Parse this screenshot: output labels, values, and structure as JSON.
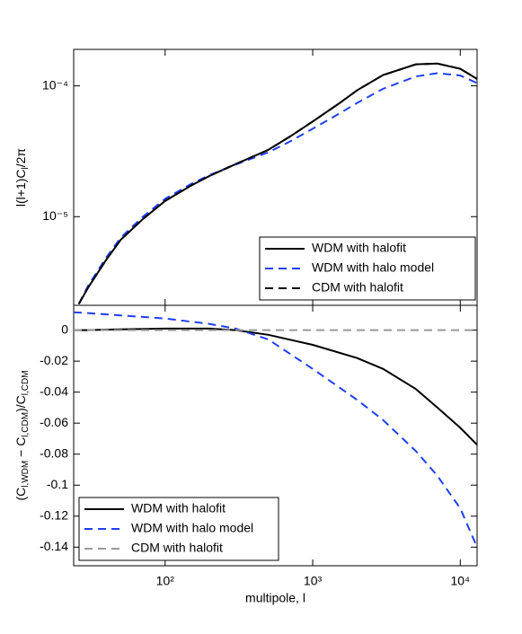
{
  "chart_data": [
    {
      "type": "line",
      "ylabel": [
        "l(l+1)C",
        "l",
        "/2π"
      ],
      "xscale": "log",
      "yscale": "log",
      "xlim": [
        24,
        13000
      ],
      "xticks": [
        100,
        1000,
        10000
      ],
      "ylim": [
        2.1e-06,
        0.00019
      ],
      "yticks": [
        {
          "value": 0.0001,
          "label": "10⁻⁴"
        },
        {
          "value": 1e-05,
          "label": "10⁻⁵"
        }
      ],
      "legend": "lower right",
      "x": [
        26,
        30,
        40,
        50,
        70,
        100,
        150,
        200,
        300,
        500,
        700,
        1000,
        1500,
        2000,
        3000,
        5000,
        7000,
        10000,
        13000
      ],
      "series": [
        {
          "name": "WDM with halofit",
          "color": "#000000",
          "style": "solid",
          "values": [
            2.15e-06,
            2.86e-06,
            4.71e-06,
            6.65e-06,
            9.5e-06,
            1.32e-05,
            1.73e-05,
            2.05e-05,
            2.52e-05,
            3.24e-05,
            4.09e-05,
            5.34e-05,
            7.3e-05,
            9.25e-05,
            0.000121,
            0.000146,
            0.000148,
            0.000135,
            0.000113
          ]
        },
        {
          "name": "WDM with halo model",
          "color": "#1f3ff5",
          "style": "dashed",
          "values": [
            2.15e-06,
            2.95e-06,
            4.9e-06,
            6.9e-06,
            9.9e-06,
            1.37e-05,
            1.78e-05,
            2.08e-05,
            2.5e-05,
            3.1e-05,
            3.75e-05,
            4.7e-05,
            6.1e-05,
            7.4e-05,
            9.5e-05,
            0.000118,
            0.000125,
            0.00012,
            0.000105
          ]
        },
        {
          "name": "CDM with halofit",
          "color": "#000000",
          "style": "dashed",
          "values": [
            2.15e-06,
            2.86e-06,
            4.71e-06,
            6.65e-06,
            9.5e-06,
            1.32e-05,
            1.73e-05,
            2.05e-05,
            2.52e-05,
            3.24e-05,
            4.09e-05,
            5.34e-05,
            7.3e-05,
            9.25e-05,
            0.000121,
            0.000146,
            0.000148,
            0.000135,
            0.000113
          ]
        }
      ]
    },
    {
      "type": "line",
      "xlabel": "multipole, l",
      "ylabel": [
        "(C",
        "l,WDM",
        " − C",
        "l,CDM",
        ")/C",
        "l,CDM"
      ],
      "xscale": "log",
      "xlim": [
        24,
        13000
      ],
      "xticks": [
        {
          "value": 100,
          "label": "10²"
        },
        {
          "value": 1000,
          "label": "10³"
        },
        {
          "value": 10000,
          "label": "10⁴"
        }
      ],
      "ylim": [
        -0.152,
        0.016
      ],
      "yticks": [
        0,
        -0.02,
        -0.04,
        -0.06,
        -0.08,
        -0.1,
        -0.12,
        -0.14
      ],
      "legend": "lower left",
      "x": [
        24,
        30,
        50,
        100,
        200,
        300,
        500,
        1000,
        2000,
        3000,
        5000,
        7000,
        10000,
        13000
      ],
      "series": [
        {
          "name": "WDM with halofit",
          "color": "#000000",
          "style": "solid",
          "values": [
            0,
            0,
            0.0005,
            0.001,
            0.001,
            0,
            -0.003,
            -0.0095,
            -0.018,
            -0.025,
            -0.038,
            -0.05,
            -0.063,
            -0.074
          ]
        },
        {
          "name": "WDM with halo model",
          "color": "#1f3ff5",
          "style": "dashed",
          "values": [
            0.0115,
            0.011,
            0.0095,
            0.0075,
            0.004,
            0.001,
            -0.006,
            -0.025,
            -0.045,
            -0.058,
            -0.078,
            -0.094,
            -0.115,
            -0.14
          ]
        },
        {
          "name": "CDM with halofit",
          "color": "#999999",
          "style": "dashed",
          "values": [
            0,
            0,
            0,
            0,
            0,
            0,
            0,
            0,
            0,
            0,
            0,
            0,
            0,
            0
          ]
        }
      ]
    }
  ]
}
